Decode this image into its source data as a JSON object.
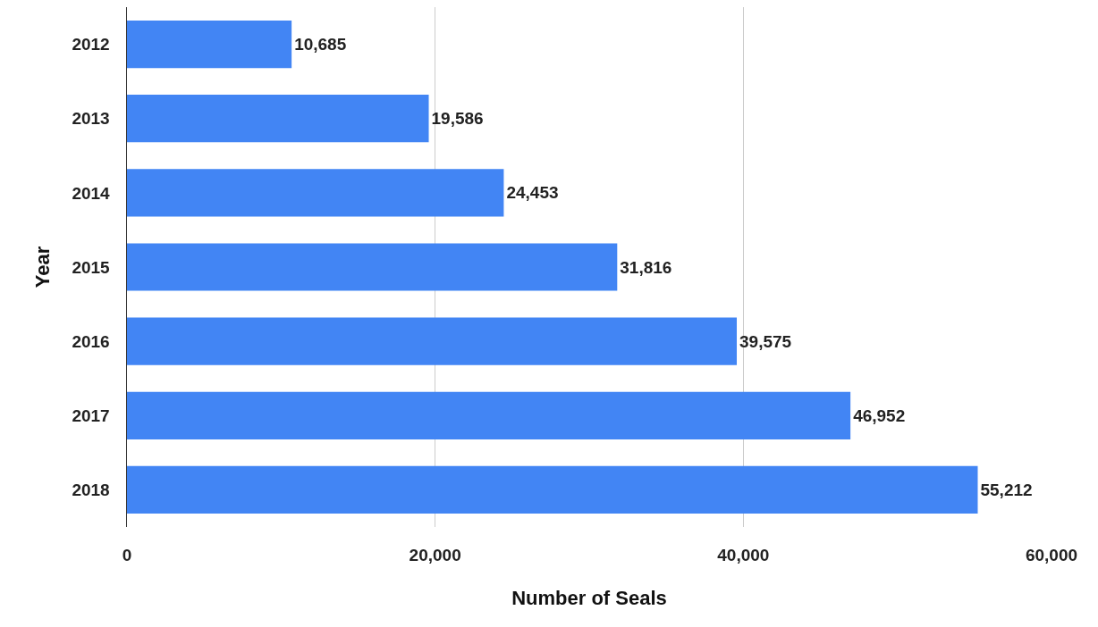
{
  "chart_data": {
    "type": "bar",
    "orientation": "horizontal",
    "xlabel": "Number of Seals",
    "ylabel": "Year",
    "categories": [
      "2012",
      "2013",
      "2014",
      "2015",
      "2016",
      "2017",
      "2018"
    ],
    "values": [
      10685,
      19586,
      24453,
      31816,
      39575,
      46952,
      55212
    ],
    "value_labels": [
      "10,685",
      "19,586",
      "24,453",
      "31,816",
      "39,575",
      "46,952",
      "55,212"
    ],
    "color": "#4285f4",
    "xlim": [
      0,
      60000
    ],
    "xticks": [
      0,
      {
        "value": 20000,
        "label": "20,000"
      },
      {
        "value": 40000,
        "label": "40,000"
      },
      {
        "value": 60000,
        "label": "60,000"
      }
    ],
    "grid": "x"
  }
}
